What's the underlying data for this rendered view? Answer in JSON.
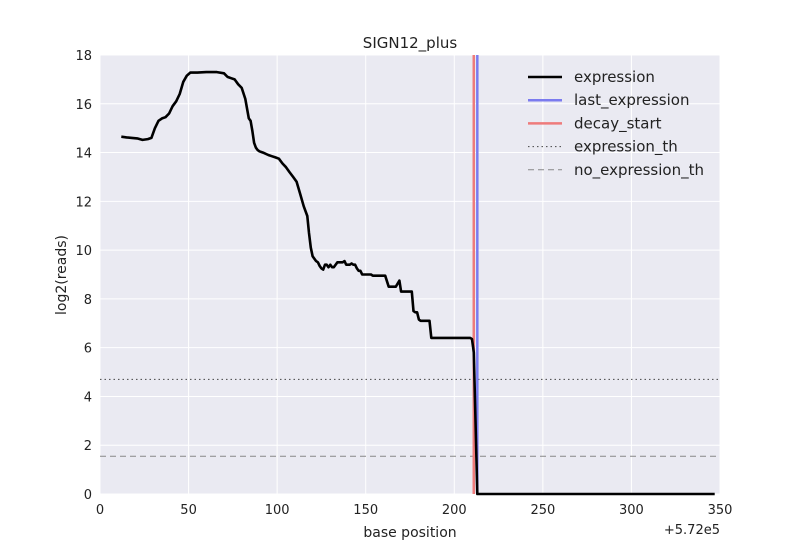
{
  "chart_data": {
    "type": "line",
    "title": "SIGN12_plus",
    "xlabel": "base position",
    "ylabel": "log2(reads)",
    "x_offset_label": "+5.72e5",
    "xlim": [
      0,
      350
    ],
    "ylim": [
      0,
      18
    ],
    "x_ticks": [
      "0",
      "50",
      "100",
      "150",
      "200",
      "250",
      "300",
      "350"
    ],
    "y_ticks": [
      "0",
      "2",
      "4",
      "6",
      "8",
      "10",
      "12",
      "14",
      "16",
      "18"
    ],
    "grid": true,
    "legend_position": "top-right",
    "colors": {
      "background": "#eaeaf2",
      "grid": "#ffffff",
      "expression": "#000000",
      "last_expression": "#7b7bef",
      "decay_start": "#ee7b7b",
      "expression_th": "#444444",
      "no_expression_th": "#888888"
    },
    "series": [
      {
        "name": "expression",
        "style": "solid-thick",
        "x": [
          12,
          15,
          18,
          21,
          24,
          27,
          29,
          31,
          33,
          35,
          37,
          39,
          41,
          43,
          45,
          47,
          49,
          51,
          55,
          60,
          66,
          70,
          72,
          74,
          76,
          78,
          80,
          82,
          84,
          85,
          86,
          87,
          88,
          89,
          90,
          92,
          95,
          97,
          99,
          101,
          103,
          105,
          107,
          109,
          111,
          113,
          115,
          117,
          118,
          119,
          120,
          121,
          122,
          123,
          124,
          125,
          126,
          127,
          128,
          129,
          130,
          131,
          132,
          133,
          134,
          135,
          136,
          137,
          138,
          139,
          140,
          141,
          142,
          143,
          144,
          145,
          146,
          147,
          148,
          149,
          150,
          151,
          152,
          153,
          154,
          155,
          157,
          159,
          161,
          163,
          165,
          167,
          169,
          170,
          171,
          172,
          173,
          174,
          175,
          176,
          177,
          178,
          179,
          180,
          181,
          182,
          183,
          184,
          185,
          186,
          187,
          188,
          189,
          190,
          191,
          192,
          193,
          194,
          195,
          196,
          198,
          200,
          202,
          204,
          206,
          208,
          209,
          210,
          211,
          212,
          213,
          214,
          215,
          220,
          230,
          250,
          280,
          300,
          320,
          347
        ],
        "y": [
          14.65,
          14.62,
          14.6,
          14.58,
          14.52,
          14.55,
          14.6,
          15.0,
          15.3,
          15.4,
          15.45,
          15.6,
          15.9,
          16.1,
          16.4,
          16.9,
          17.15,
          17.28,
          17.28,
          17.3,
          17.3,
          17.25,
          17.1,
          17.05,
          17.0,
          16.8,
          16.65,
          16.2,
          15.4,
          15.3,
          14.9,
          14.4,
          14.2,
          14.1,
          14.05,
          14.0,
          13.9,
          13.85,
          13.8,
          13.75,
          13.55,
          13.4,
          13.2,
          13.0,
          12.8,
          12.3,
          11.8,
          11.4,
          10.7,
          10.1,
          9.75,
          9.65,
          9.55,
          9.5,
          9.35,
          9.25,
          9.2,
          9.4,
          9.4,
          9.3,
          9.4,
          9.3,
          9.3,
          9.4,
          9.5,
          9.5,
          9.5,
          9.5,
          9.55,
          9.4,
          9.4,
          9.4,
          9.45,
          9.4,
          9.4,
          9.25,
          9.15,
          9.15,
          9.0,
          9.0,
          9.0,
          9.0,
          9.0,
          9.0,
          8.95,
          8.95,
          8.95,
          8.95,
          8.95,
          8.5,
          8.5,
          8.5,
          8.75,
          8.3,
          8.3,
          8.3,
          8.3,
          8.3,
          8.3,
          8.3,
          7.5,
          7.45,
          7.45,
          7.15,
          7.1,
          7.1,
          7.1,
          7.1,
          7.1,
          7.1,
          6.4,
          6.4,
          6.4,
          6.4,
          6.4,
          6.4,
          6.4,
          6.4,
          6.4,
          6.4,
          6.4,
          6.4,
          6.4,
          6.4,
          6.4,
          6.4,
          6.4,
          6.35,
          5.8,
          3.0,
          0.0,
          0.0,
          0.0,
          0.0,
          0.0,
          0.0,
          0.0,
          0.0,
          0.0,
          0.0
        ]
      },
      {
        "name": "last_expression",
        "style": "vline",
        "x": 213
      },
      {
        "name": "decay_start",
        "style": "vline",
        "x": 211
      },
      {
        "name": "expression_th",
        "style": "hline-dotted",
        "y": 4.7
      },
      {
        "name": "no_expression_th",
        "style": "hline-dashed",
        "y": 1.55
      }
    ]
  }
}
